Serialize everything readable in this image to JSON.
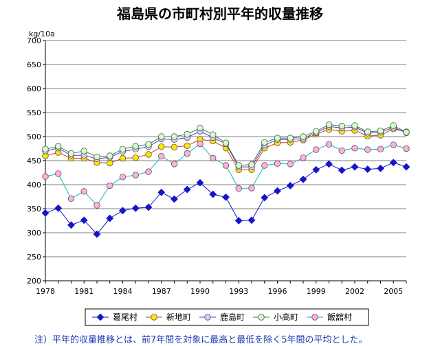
{
  "chart_data": {
    "type": "line",
    "title": "福島県の市町村別平年的収量推移",
    "ylabel": "kg/10a",
    "xlabel": "",
    "ylim": [
      200,
      700
    ],
    "yticks": [
      200,
      250,
      300,
      350,
      400,
      450,
      500,
      550,
      600,
      650,
      700
    ],
    "xlim": [
      1978,
      2006
    ],
    "xticks": [
      1978,
      1981,
      1984,
      1987,
      1990,
      1993,
      1996,
      1999,
      2002,
      2005
    ],
    "x": [
      1978,
      1979,
      1980,
      1981,
      1982,
      1983,
      1984,
      1985,
      1986,
      1987,
      1988,
      1989,
      1990,
      1991,
      1992,
      1993,
      1994,
      1995,
      1996,
      1997,
      1998,
      1999,
      2000,
      2001,
      2002,
      2003,
      2004,
      2005,
      2006
    ],
    "series": [
      {
        "name": "葛尾村",
        "color": "#1515c8",
        "marker": "diamond",
        "values": [
          341,
          351,
          316,
          326,
          297,
          330,
          346,
          351,
          353,
          384,
          370,
          390,
          404,
          380,
          374,
          325,
          326,
          373,
          387,
          398,
          411,
          431,
          443,
          430,
          437,
          432,
          434,
          446,
          437
        ]
      },
      {
        "name": "新地町",
        "color": "#d23c14",
        "marker": "circle-yellow",
        "values": [
          460,
          467,
          455,
          455,
          446,
          445,
          455,
          456,
          463,
          479,
          478,
          481,
          494,
          491,
          476,
          431,
          431,
          476,
          487,
          488,
          493,
          505,
          515,
          511,
          513,
          501,
          503,
          516,
          510
        ]
      },
      {
        "name": "鹿島町",
        "color": "#7030a0",
        "marker": "circle-lavender",
        "values": [
          470,
          476,
          461,
          461,
          454,
          457,
          469,
          474,
          479,
          495,
          494,
          498,
          511,
          498,
          485,
          437,
          437,
          482,
          494,
          494,
          496,
          508,
          521,
          518,
          520,
          507,
          509,
          519,
          508
        ]
      },
      {
        "name": "小高町",
        "color": "#148a5a",
        "marker": "circle-lightgreen",
        "values": [
          474,
          480,
          465,
          470,
          458,
          460,
          474,
          480,
          484,
          500,
          500,
          505,
          518,
          504,
          487,
          440,
          442,
          488,
          497,
          497,
          500,
          511,
          525,
          522,
          523,
          510,
          512,
          523,
          509
        ]
      },
      {
        "name": "飯舘村",
        "color": "#14b4b4",
        "marker": "circle-pink",
        "values": [
          417,
          423,
          371,
          386,
          357,
          398,
          416,
          420,
          427,
          459,
          443,
          465,
          485,
          455,
          440,
          392,
          393,
          440,
          444,
          443,
          456,
          473,
          484,
          471,
          476,
          473,
          474,
          483,
          475
        ]
      }
    ]
  },
  "note": "注）平年的収量推移とは、前7年間を対象に最高と最低を除く5年間の平均とした。"
}
